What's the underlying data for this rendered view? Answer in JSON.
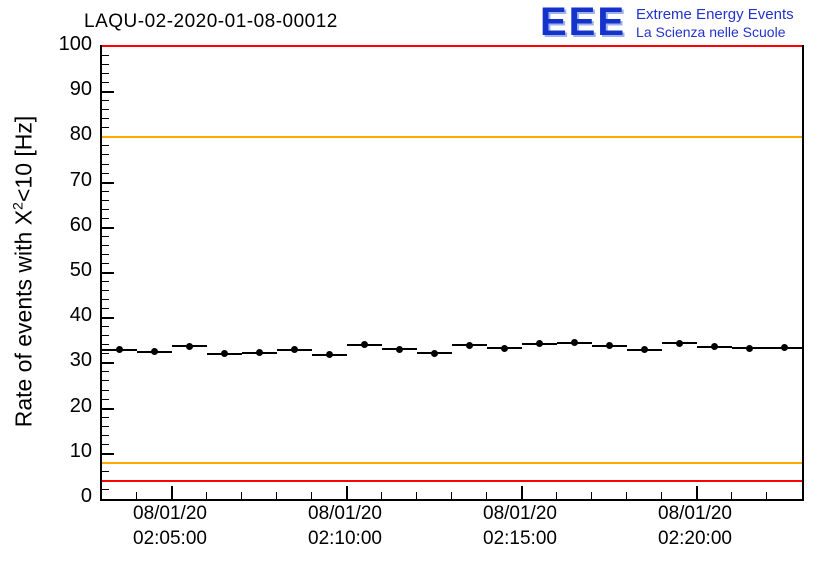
{
  "header": {
    "title": "LAQU-02-2020-01-08-00012"
  },
  "logo": {
    "acronym": "EEE",
    "line1": "Extreme Energy Events",
    "line2": "La Scienza nelle Scuole",
    "color": "#2233cc"
  },
  "chart_data": {
    "type": "scatter",
    "title": "LAQU-02-2020-01-08-00012",
    "ylabel_prefix": "Rate of events with X",
    "ylabel_sup": "2",
    "ylabel_suffix": "<10 [Hz]",
    "xlabel": "",
    "ylim": [
      0,
      100
    ],
    "y_major_step": 10,
    "y_minor_step": 2,
    "x_domain_seconds": [
      180,
      1380
    ],
    "x_minor_step_seconds": 60,
    "x_ticks": [
      {
        "t": 300,
        "date": "08/01/20",
        "time": "02:05:00"
      },
      {
        "t": 600,
        "date": "08/01/20",
        "time": "02:10:00"
      },
      {
        "t": 900,
        "date": "08/01/20",
        "time": "02:15:00"
      },
      {
        "t": 1200,
        "date": "08/01/20",
        "time": "02:20:00"
      }
    ],
    "ref_lines": [
      {
        "y": 100,
        "color": "#ff0000"
      },
      {
        "y": 80,
        "color": "#ffaa00"
      },
      {
        "y": 8,
        "color": "#ffaa00"
      },
      {
        "y": 4,
        "color": "#ff0000"
      }
    ],
    "bin_width_seconds": 60,
    "marker_color": "#000000",
    "points": [
      {
        "t": 210,
        "y": 33.0
      },
      {
        "t": 270,
        "y": 32.6
      },
      {
        "t": 330,
        "y": 33.8
      },
      {
        "t": 390,
        "y": 32.1
      },
      {
        "t": 450,
        "y": 32.4
      },
      {
        "t": 510,
        "y": 33.0
      },
      {
        "t": 570,
        "y": 31.9
      },
      {
        "t": 630,
        "y": 34.1
      },
      {
        "t": 690,
        "y": 33.1
      },
      {
        "t": 750,
        "y": 32.2
      },
      {
        "t": 810,
        "y": 34.0
      },
      {
        "t": 870,
        "y": 33.3
      },
      {
        "t": 930,
        "y": 34.3
      },
      {
        "t": 990,
        "y": 34.6
      },
      {
        "t": 1050,
        "y": 33.9
      },
      {
        "t": 1110,
        "y": 33.0
      },
      {
        "t": 1170,
        "y": 34.5
      },
      {
        "t": 1230,
        "y": 33.7
      },
      {
        "t": 1290,
        "y": 33.3
      },
      {
        "t": 1350,
        "y": 33.5
      }
    ],
    "legend": null,
    "grid": false
  }
}
